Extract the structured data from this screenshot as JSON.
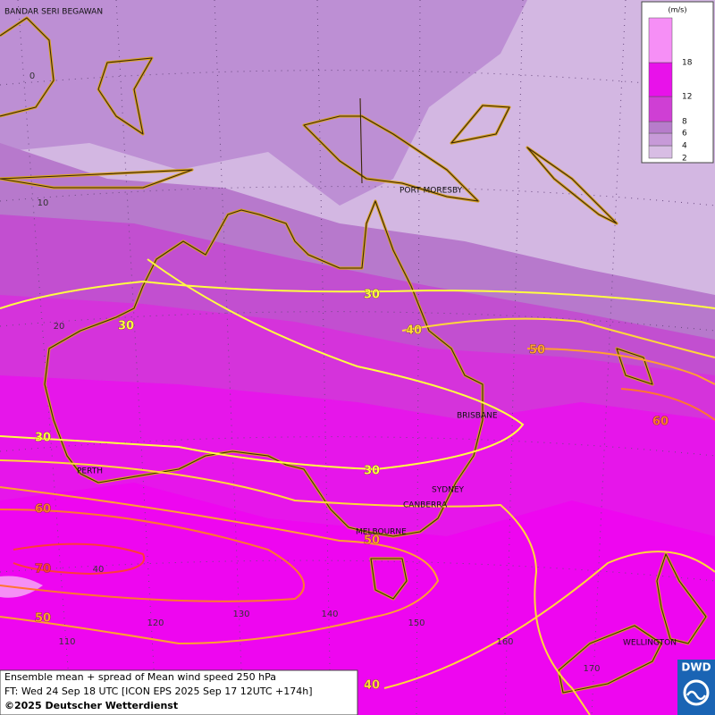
{
  "map": {
    "places": [
      "BANDAR SERI BEGAWAN",
      "PORT MORESBY",
      "BRISBANE",
      "PERTH",
      "SYDNEY",
      "CANBERRA",
      "MELBOURNE",
      "WELLINGTON"
    ],
    "latitude_labels": [
      0,
      10,
      20,
      40
    ],
    "longitude_labels": [
      110,
      120,
      130,
      140,
      150,
      160,
      170
    ],
    "contour_labels": [
      30,
      30,
      30,
      30,
      40,
      50,
      60,
      60,
      50,
      70,
      50,
      40
    ],
    "legend": {
      "unit": "(m/s)",
      "ticks": [
        2,
        4,
        6,
        8,
        12,
        18
      ],
      "colors": [
        "#d8bde4",
        "#c79ad8",
        "#b77ccb",
        "#cf3fd4",
        "#e812ea",
        "#f68ff6"
      ]
    },
    "footer": {
      "line1": "Ensemble mean + spread of Mean wind speed 250 hPa",
      "line2": "FT: Wed 24 Sep 18 UTC [ICON EPS 2025 Sep 17 12UTC +174h]",
      "copyright": "©2025 Deutscher Wetterdienst"
    },
    "logo": "DWD"
  }
}
